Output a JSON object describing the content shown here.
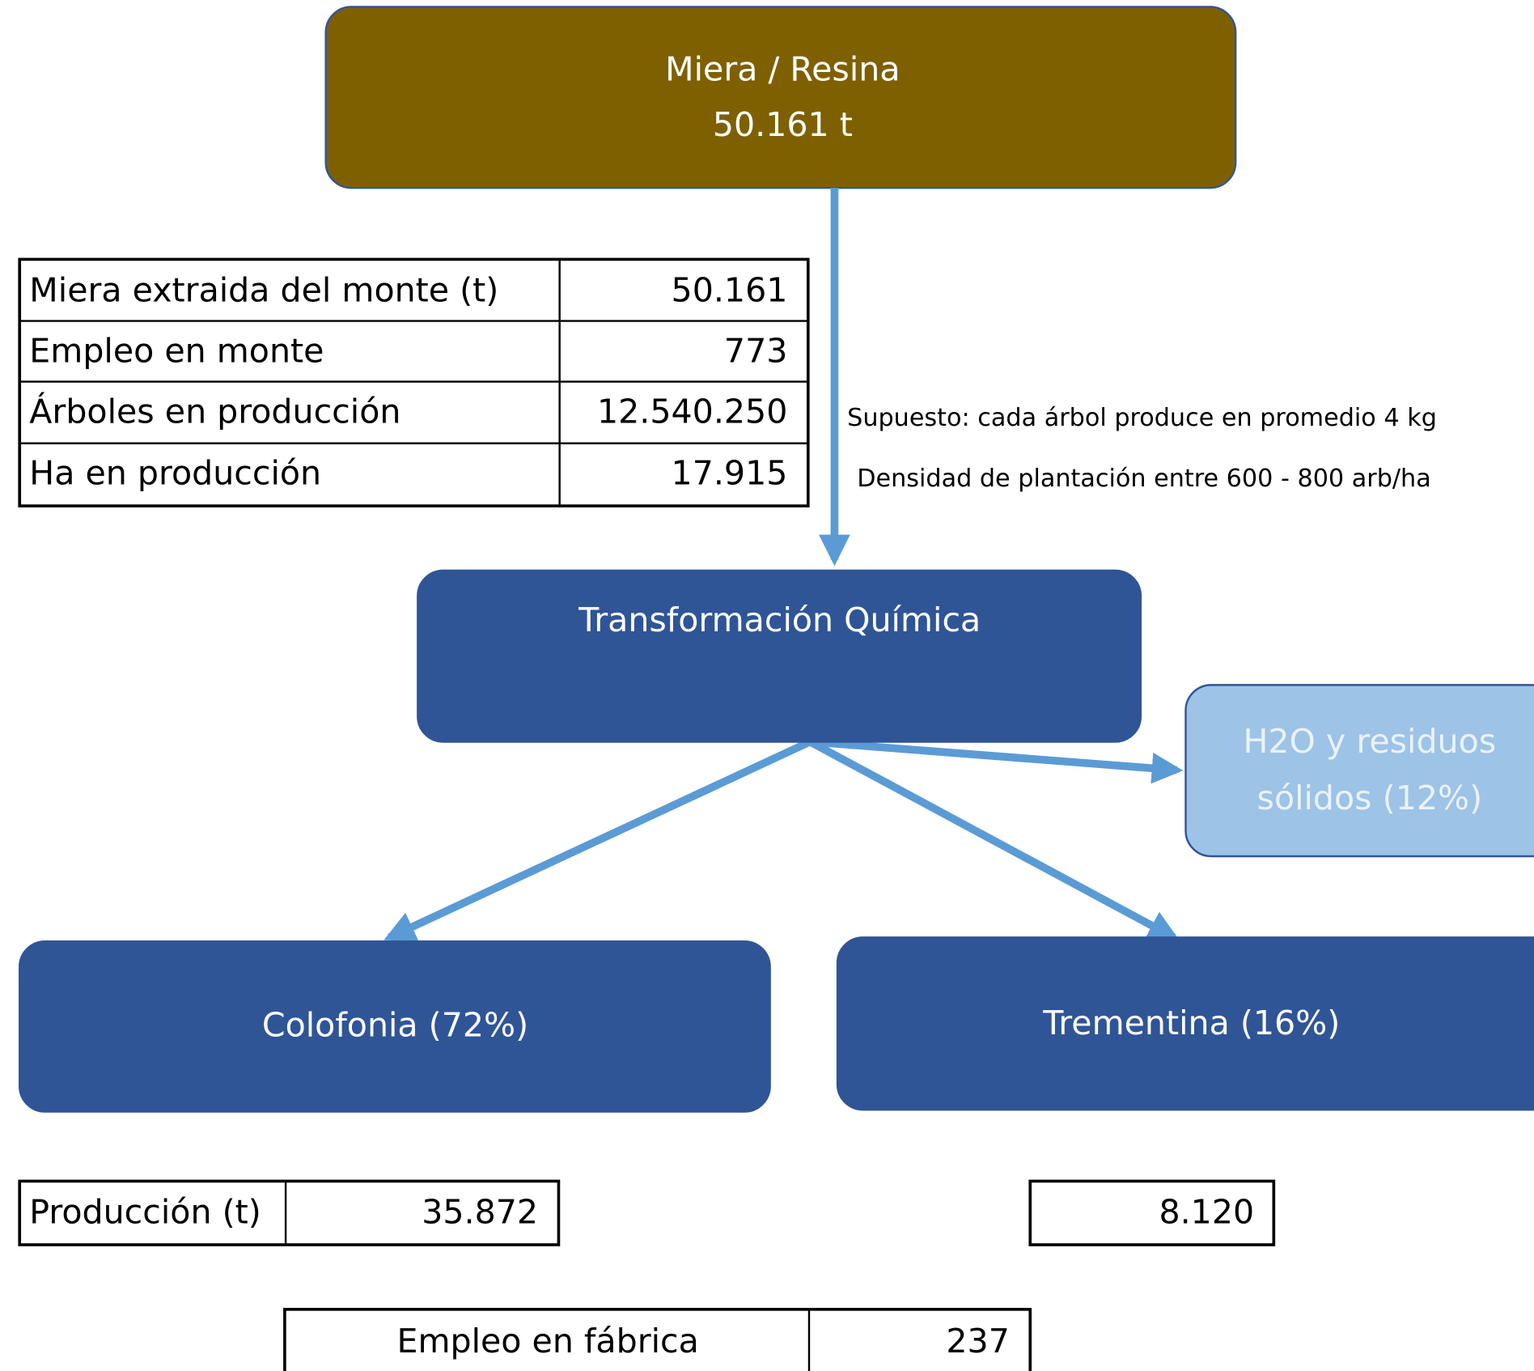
{
  "source": {
    "label": "Miera / Resina",
    "value": "50.161 t"
  },
  "forest_table": {
    "rows": [
      [
        "Miera extraida del monte (t)",
        "50.161"
      ],
      [
        "Empleo en monte",
        "773"
      ],
      [
        "Árboles en producción",
        "12.540.250"
      ],
      [
        "Ha en producción",
        "17.915"
      ]
    ]
  },
  "notes": [
    "Supuesto: cada árbol produce en promedio 4 kg",
    "Densidad de plantación entre 600 - 800 arb/ha"
  ],
  "process": {
    "label": "Transformación Química"
  },
  "waste": {
    "lines": [
      "H2O y residuos",
      "sólidos (12%)"
    ]
  },
  "products": [
    {
      "label": "Colofonia (72%)"
    },
    {
      "label": "Trementina (16%)"
    }
  ],
  "production_table": {
    "label": "Producción (t)",
    "colofonia": "35.872",
    "trementina": "8.120"
  },
  "factory_table": {
    "label": "Empleo en fábrica",
    "value": "237"
  }
}
